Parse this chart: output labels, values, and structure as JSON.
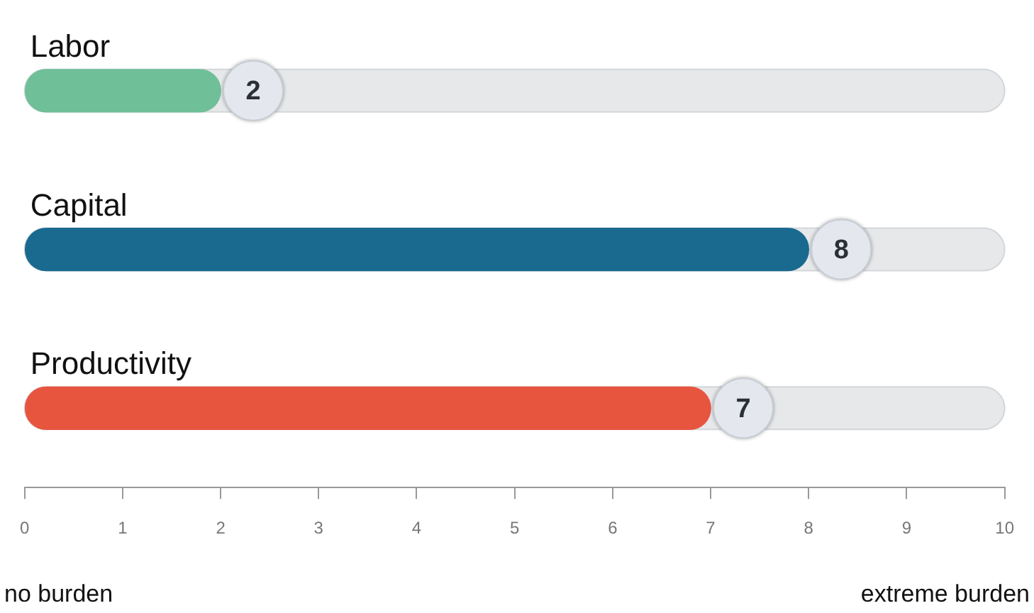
{
  "chart_data": {
    "type": "bar",
    "orientation": "horizontal",
    "categories": [
      "Labor",
      "Capital",
      "Productivity"
    ],
    "values": [
      2,
      8,
      7
    ],
    "colors": [
      "#6fbf98",
      "#1a6a90",
      "#e8553f"
    ],
    "xlim": [
      0,
      10
    ],
    "xticks": [
      0,
      1,
      2,
      3,
      4,
      5,
      6,
      7,
      8,
      9,
      10
    ],
    "data_labels": true,
    "grid": false,
    "legend": false,
    "annotations": [
      "no burden",
      "extreme burden"
    ]
  }
}
